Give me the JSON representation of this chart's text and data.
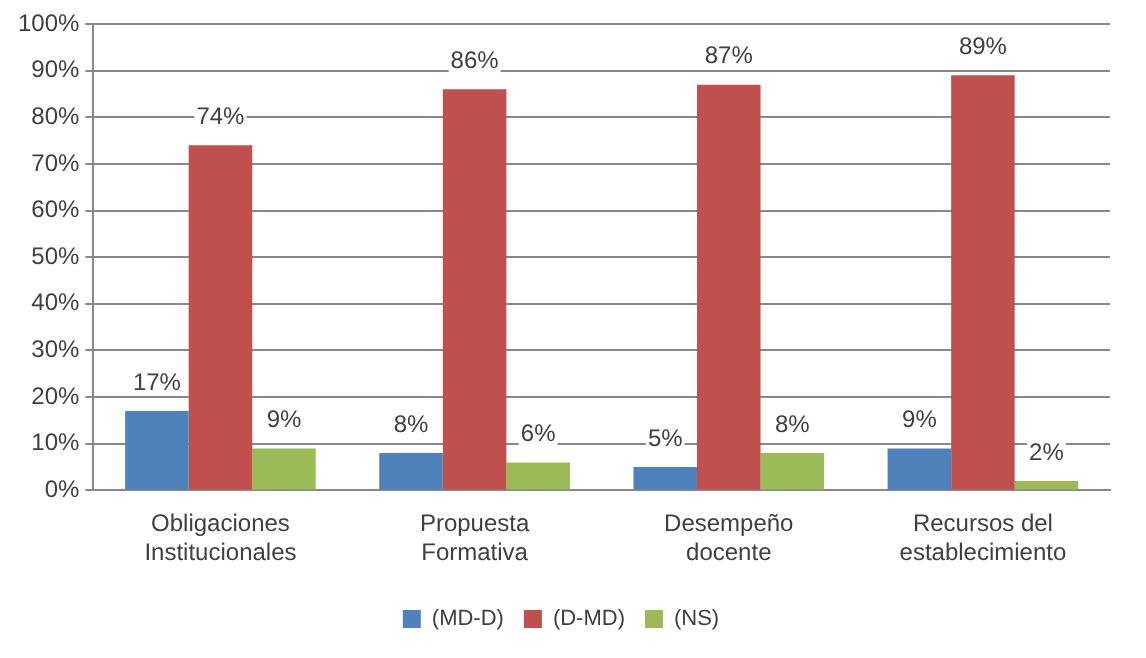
{
  "chart_data": {
    "type": "bar",
    "categories": [
      "Obligaciones Institucionales",
      "Propuesta Formativa",
      "Desempeño docente",
      "Recursos del establecimiento"
    ],
    "series": [
      {
        "name": "(MD-D)",
        "color": "#4f81bd",
        "values": [
          17,
          8,
          5,
          9
        ],
        "value_labels": [
          "17%",
          "8%",
          "5%",
          "9%"
        ]
      },
      {
        "name": "(D-MD)",
        "color": "#c0504d",
        "values": [
          74,
          86,
          87,
          89
        ],
        "value_labels": [
          "74%",
          "86%",
          "87%",
          "89%"
        ]
      },
      {
        "name": "(NS)",
        "color": "#9bbb59",
        "values": [
          9,
          6,
          8,
          2
        ],
        "value_labels": [
          "9%",
          "6%",
          "8%",
          "2%"
        ]
      }
    ],
    "ylim": [
      0,
      100
    ],
    "yticks": [
      {
        "value": 0,
        "label": "0%"
      },
      {
        "value": 10,
        "label": "10%"
      },
      {
        "value": 20,
        "label": "20%"
      },
      {
        "value": 30,
        "label": "30%"
      },
      {
        "value": 40,
        "label": "40%"
      },
      {
        "value": 50,
        "label": "50%"
      },
      {
        "value": 60,
        "label": "60%"
      },
      {
        "value": 70,
        "label": "70%"
      },
      {
        "value": 80,
        "label": "80%"
      },
      {
        "value": 90,
        "label": "90%"
      },
      {
        "value": 100,
        "label": "100%"
      }
    ],
    "grid": "y",
    "legend": "bottom"
  }
}
